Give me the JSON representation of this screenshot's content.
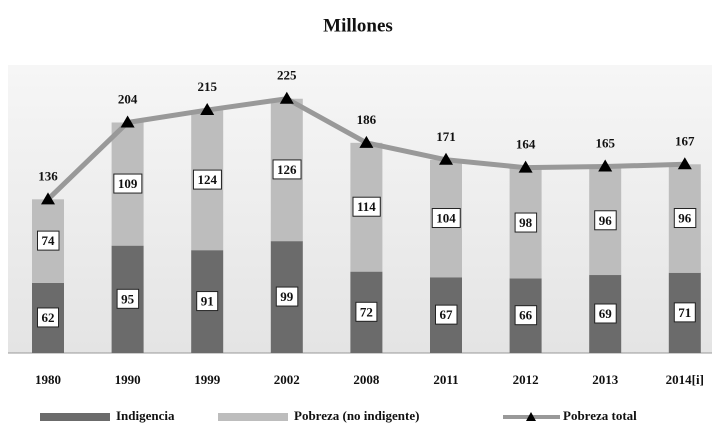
{
  "chart_data": {
    "type": "bar",
    "title": "Millones",
    "categories": [
      "1980",
      "1990",
      "1999",
      "2002",
      "2008",
      "2011",
      "2012",
      "2013",
      "2014[i]"
    ],
    "series": [
      {
        "name": "Indigencia",
        "color": "#6b6b6b",
        "values": [
          62,
          95,
          91,
          99,
          72,
          67,
          66,
          69,
          71
        ]
      },
      {
        "name": "Pobreza (no indigente)",
        "color": "#bdbdbd",
        "values": [
          74,
          109,
          124,
          126,
          114,
          104,
          98,
          96,
          96
        ]
      },
      {
        "name": "Pobreza total",
        "color": "#999999",
        "type": "line",
        "marker_color": "#000000",
        "values": [
          136,
          204,
          215,
          225,
          186,
          171,
          164,
          165,
          167
        ]
      }
    ],
    "stacked": true
  }
}
